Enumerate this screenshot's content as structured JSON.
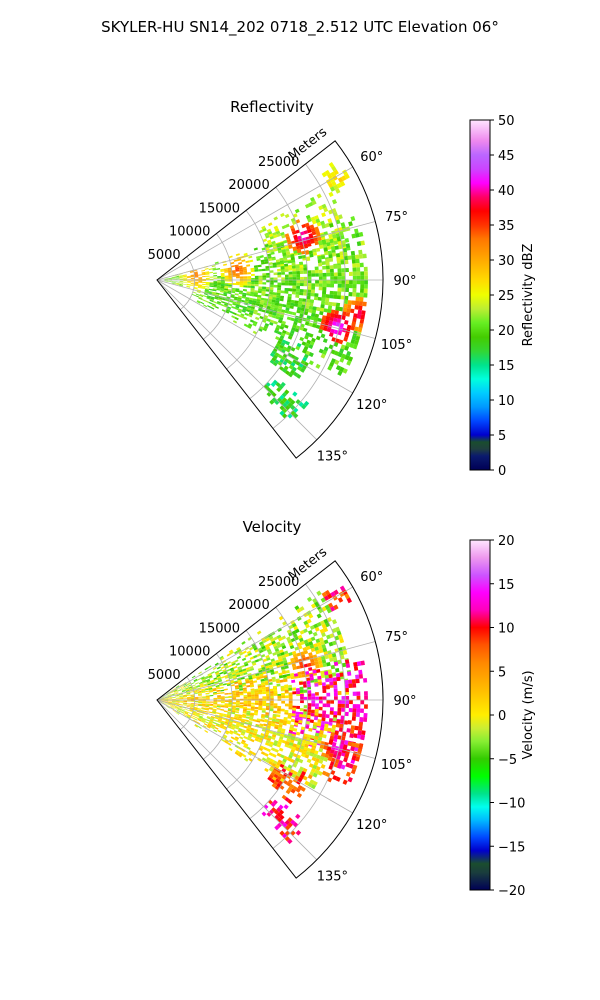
{
  "figure": {
    "suptitle": "SKYLER-HU  SN14_202  0718_2.512 UTC Elevation 06°"
  },
  "chart_data": [
    {
      "type": "heatmap",
      "projection": "polar-sector",
      "title": "Reflectivity",
      "radial_label": "Meters",
      "radial_ticks": [
        5000,
        10000,
        15000,
        20000,
        25000
      ],
      "radial_tick_labels": [
        "5000",
        "10000",
        "15000",
        "20000",
        "25000"
      ],
      "range_max_m": 30000,
      "azimuth_range_deg": [
        52,
        142
      ],
      "azimuth_ticks": [
        60,
        75,
        90,
        105,
        120,
        135
      ],
      "azimuth_tick_labels": [
        "60°",
        "75°",
        "90°",
        "105°",
        "120°",
        "135°"
      ],
      "grid": true,
      "colorbar": {
        "label": "Reflectivity dBZ",
        "range": [
          0,
          50
        ],
        "ticks": [
          0,
          5,
          10,
          15,
          20,
          25,
          30,
          35,
          40,
          45,
          50
        ],
        "tick_labels": [
          "0",
          "5",
          "10",
          "15",
          "20",
          "25",
          "30",
          "35",
          "40",
          "45",
          "50"
        ],
        "color_stops": [
          [
            0,
            "#000055"
          ],
          [
            2,
            "#0a1a6e"
          ],
          [
            3,
            "#1f3f3f"
          ],
          [
            4,
            "#1a4d2e"
          ],
          [
            5,
            "#0000cc"
          ],
          [
            7,
            "#0047ff"
          ],
          [
            9,
            "#0099ff"
          ],
          [
            11,
            "#00ccff"
          ],
          [
            13,
            "#00ffdd"
          ],
          [
            15,
            "#00e38c"
          ],
          [
            17,
            "#33d633"
          ],
          [
            19,
            "#44cc00"
          ],
          [
            21,
            "#66ee22"
          ],
          [
            23,
            "#bbee33"
          ],
          [
            25,
            "#eeff00"
          ],
          [
            27,
            "#ffdd00"
          ],
          [
            29,
            "#ffbb00"
          ],
          [
            31,
            "#ff9900"
          ],
          [
            33,
            "#ff7700"
          ],
          [
            35,
            "#ff3300"
          ],
          [
            37,
            "#ff0000"
          ],
          [
            39,
            "#ff0066"
          ],
          [
            41,
            "#ff00ff"
          ],
          [
            43,
            "#cc44ff"
          ],
          [
            45,
            "#bb66ff"
          ],
          [
            47,
            "#ee88ee"
          ],
          [
            50,
            "#ffe6ff"
          ]
        ]
      },
      "echo_regions": [
        {
          "az_center": 60,
          "az_width": 4,
          "r_min": 26000,
          "r_max": 29000,
          "level": 24
        },
        {
          "az_center": 74,
          "az_width": 12,
          "r_min": 15000,
          "r_max": 26000,
          "level": 23
        },
        {
          "az_center": 88,
          "az_width": 16,
          "r_min": 1000,
          "r_max": 28000,
          "level": 21
        },
        {
          "az_center": 104,
          "az_width": 14,
          "r_min": 5000,
          "r_max": 28000,
          "level": 20
        },
        {
          "az_center": 120,
          "az_width": 6,
          "r_min": 18000,
          "r_max": 23000,
          "level": 18
        },
        {
          "az_center": 133,
          "az_width": 4,
          "r_min": 20000,
          "r_max": 26000,
          "level": 17
        }
      ],
      "cores": [
        {
          "az": 73,
          "r": 20000,
          "level": 42
        },
        {
          "az": 104,
          "r": 24500,
          "level": 44
        },
        {
          "az": 99,
          "r": 27000,
          "level": 40
        },
        {
          "az": 82,
          "r": 10500,
          "level": 35
        },
        {
          "az": 82,
          "r": 5000,
          "level": 33
        },
        {
          "az": 60,
          "r": 27500,
          "level": 30
        }
      ]
    },
    {
      "type": "heatmap",
      "projection": "polar-sector",
      "title": "Velocity",
      "radial_label": "Meters",
      "radial_ticks": [
        5000,
        10000,
        15000,
        20000,
        25000
      ],
      "radial_tick_labels": [
        "5000",
        "10000",
        "15000",
        "20000",
        "25000"
      ],
      "range_max_m": 30000,
      "azimuth_range_deg": [
        52,
        142
      ],
      "azimuth_ticks": [
        60,
        75,
        90,
        105,
        120,
        135
      ],
      "azimuth_tick_labels": [
        "60°",
        "75°",
        "90°",
        "105°",
        "120°",
        "135°"
      ],
      "grid": true,
      "colorbar": {
        "label": "Velocity (m/s)",
        "range": [
          -20,
          20
        ],
        "ticks": [
          -20,
          -15,
          -10,
          -5,
          0,
          5,
          10,
          15,
          20
        ],
        "tick_labels": [
          "−20",
          "−15",
          "−10",
          "−5",
          "0",
          "5",
          "10",
          "15",
          "20"
        ],
        "color_stops": [
          [
            -20,
            "#000055"
          ],
          [
            -18,
            "#1a3d3d"
          ],
          [
            -17,
            "#1a4d2e"
          ],
          [
            -15.5,
            "#0000cc"
          ],
          [
            -14,
            "#0047ff"
          ],
          [
            -12,
            "#00bbff"
          ],
          [
            -10.5,
            "#00ffee"
          ],
          [
            -9,
            "#00e38c"
          ],
          [
            -7,
            "#00ff00"
          ],
          [
            -5,
            "#33cc00"
          ],
          [
            -3,
            "#88ee33"
          ],
          [
            -1.5,
            "#ccee33"
          ],
          [
            0,
            "#ffee00"
          ],
          [
            2,
            "#ffcc00"
          ],
          [
            4,
            "#ffaa00"
          ],
          [
            6,
            "#ff8800"
          ],
          [
            8,
            "#ff5500"
          ],
          [
            10,
            "#ff0000"
          ],
          [
            12,
            "#ff00bb"
          ],
          [
            14,
            "#ff00ff"
          ],
          [
            16,
            "#cc55ff"
          ],
          [
            18,
            "#ee99ee"
          ],
          [
            20,
            "#ffe6ff"
          ]
        ]
      },
      "echo_regions": [
        {
          "az_center": 60,
          "az_width": 4,
          "r_min": 26000,
          "r_max": 29000,
          "level": 9
        },
        {
          "az_center": 72,
          "az_width": 16,
          "r_min": 0,
          "r_max": 26000,
          "level": -2
        },
        {
          "az_center": 90,
          "az_width": 14,
          "r_min": 0,
          "r_max": 18000,
          "level": 2
        },
        {
          "az_center": 94,
          "az_width": 16,
          "r_min": 18000,
          "r_max": 28000,
          "level": 12
        },
        {
          "az_center": 108,
          "az_width": 16,
          "r_min": 0,
          "r_max": 24000,
          "level": 0
        },
        {
          "az_center": 105,
          "az_width": 10,
          "r_min": 24000,
          "r_max": 28000,
          "level": 9
        },
        {
          "az_center": 122,
          "az_width": 6,
          "r_min": 18000,
          "r_max": 23000,
          "level": 8
        },
        {
          "az_center": 133,
          "az_width": 4,
          "r_min": 20000,
          "r_max": 26000,
          "level": 11
        }
      ],
      "cores": [
        {
          "az": 104,
          "r": 24500,
          "level": 15
        },
        {
          "az": 88,
          "r": 22000,
          "level": 13
        },
        {
          "az": 76,
          "r": 20000,
          "level": 11
        }
      ]
    }
  ]
}
